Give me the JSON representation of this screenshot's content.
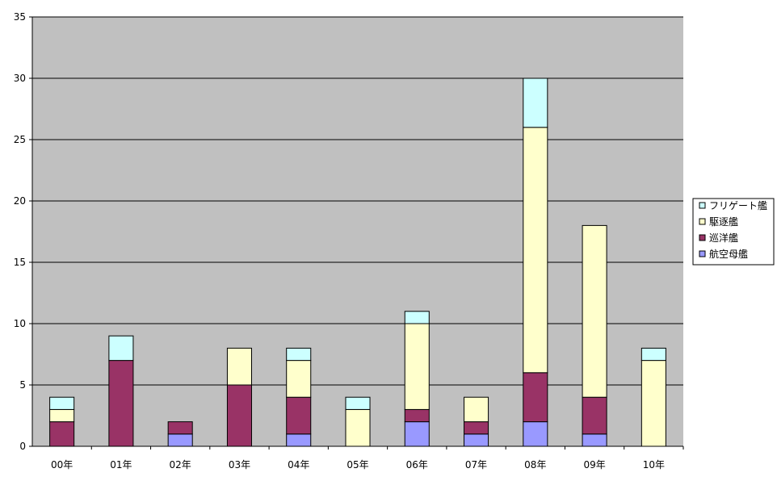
{
  "chart_data": {
    "type": "bar",
    "stacked": true,
    "categories": [
      "00年",
      "01年",
      "02年",
      "03年",
      "04年",
      "05年",
      "06年",
      "07年",
      "08年",
      "09年",
      "10年"
    ],
    "series": [
      {
        "name": "航空母艦",
        "color": "#9999FF",
        "values": [
          0,
          0,
          1,
          0,
          1,
          0,
          2,
          1,
          2,
          1,
          0
        ]
      },
      {
        "name": "巡洋艦",
        "color": "#993366",
        "values": [
          2,
          7,
          1,
          5,
          3,
          0,
          1,
          1,
          4,
          3,
          0
        ]
      },
      {
        "name": "駆逐艦",
        "color": "#FFFFCC",
        "values": [
          1,
          0,
          0,
          3,
          3,
          3,
          7,
          2,
          20,
          14,
          7
        ]
      },
      {
        "name": "フリゲート艦",
        "color": "#CCFFFF",
        "values": [
          1,
          2,
          0,
          0,
          1,
          1,
          1,
          0,
          4,
          0,
          1
        ]
      }
    ],
    "legend_order": [
      "フリゲート艦",
      "駆逐艦",
      "巡洋艦",
      "航空母艦"
    ],
    "ylim": [
      0,
      35
    ],
    "yticks": [
      0,
      5,
      10,
      15,
      20,
      25,
      30,
      35
    ],
    "grid": true,
    "plot_background": "#C0C0C0",
    "legend_position": "right"
  }
}
